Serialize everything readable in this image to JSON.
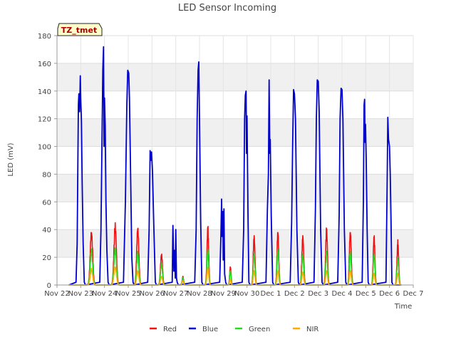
{
  "chart_data": {
    "type": "line",
    "title": "LED Sensor Incoming",
    "xlabel": "Time",
    "ylabel": "LED (mV)",
    "annotation": "TZ_tmet",
    "ylim": [
      0,
      180
    ],
    "yticks": [
      0,
      20,
      40,
      60,
      80,
      100,
      120,
      140,
      160,
      180
    ],
    "xlim": [
      0,
      15
    ],
    "xticks": [
      "Nov 22",
      "Nov 23",
      "Nov 24",
      "Nov 25",
      "Nov 26",
      "Nov 27",
      "Nov 28",
      "Nov 29",
      "Nov 30",
      "Dec 1",
      "Dec 2",
      "Dec 3",
      "Dec 4",
      "Dec 5",
      "Dec 6",
      "Dec 7"
    ],
    "grid": true,
    "legend_position": "bottom",
    "series": [
      {
        "name": "Red",
        "color": "#ee1111"
      },
      {
        "name": "Blue",
        "color": "#0000cc"
      },
      {
        "name": "Green",
        "color": "#22dd22"
      },
      {
        "name": "NIR",
        "color": "#ffaa00"
      }
    ],
    "days": [
      {
        "center": 1.45,
        "width": 0.17,
        "Blue": [
          [
            0.8,
            2
          ],
          [
            0.85,
            30
          ],
          [
            0.9,
            130
          ],
          [
            0.92,
            138
          ],
          [
            0.95,
            125
          ],
          [
            0.98,
            151
          ],
          [
            1.0,
            135
          ],
          [
            1.03,
            118
          ],
          [
            1.06,
            75
          ],
          [
            1.1,
            30
          ],
          [
            1.15,
            2
          ]
        ],
        "Red": 38,
        "Green": 24,
        "NIR": 11
      },
      {
        "center": 2.45,
        "width": 0.17,
        "Blue": [
          [
            1.8,
            2
          ],
          [
            1.85,
            40
          ],
          [
            1.9,
            110
          ],
          [
            1.93,
            155
          ],
          [
            1.96,
            172
          ],
          [
            1.98,
            100
          ],
          [
            2.0,
            135
          ],
          [
            2.03,
            115
          ],
          [
            2.06,
            60
          ],
          [
            2.1,
            25
          ],
          [
            2.15,
            2
          ]
        ],
        "Red": 42,
        "Green": 26,
        "NIR": 13
      },
      {
        "center": 3.4,
        "width": 0.15,
        "Blue": [
          [
            2.8,
            2
          ],
          [
            2.88,
            60
          ],
          [
            2.94,
            130
          ],
          [
            2.98,
            155
          ],
          [
            3.02,
            153
          ],
          [
            3.05,
            135
          ],
          [
            3.1,
            80
          ],
          [
            3.15,
            20
          ],
          [
            3.2,
            2
          ]
        ],
        "Red": 41,
        "Green": 23,
        "NIR": 10
      },
      {
        "center": 4.4,
        "width": 0.14,
        "Blue": [
          [
            3.82,
            2
          ],
          [
            3.88,
            40
          ],
          [
            3.92,
            97
          ],
          [
            3.95,
            90
          ],
          [
            3.98,
            96
          ],
          [
            4.02,
            82
          ],
          [
            4.08,
            40
          ],
          [
            4.14,
            2
          ]
        ],
        "Red": 22,
        "Green": 15,
        "NIR": 6
      },
      {
        "center": 5.3,
        "width": 0.1,
        "Blue": [
          [
            4.85,
            2
          ],
          [
            4.88,
            43
          ],
          [
            4.92,
            10
          ],
          [
            4.95,
            25
          ],
          [
            4.98,
            5
          ],
          [
            5.0,
            40
          ],
          [
            5.03,
            5
          ],
          [
            5.06,
            2
          ]
        ],
        "Red": 6,
        "Green": 5,
        "NIR": 3
      },
      {
        "center": 6.35,
        "width": 0.12,
        "Blue": [
          [
            5.8,
            2
          ],
          [
            5.86,
            40
          ],
          [
            5.9,
            120
          ],
          [
            5.94,
            155
          ],
          [
            5.97,
            161
          ],
          [
            6.0,
            120
          ],
          [
            6.05,
            45
          ],
          [
            6.1,
            2
          ]
        ],
        "Red": 40,
        "Green": 25,
        "NIR": 12
      },
      {
        "center": 7.3,
        "width": 0.1,
        "Blue": [
          [
            6.85,
            2
          ],
          [
            6.9,
            35
          ],
          [
            6.93,
            62
          ],
          [
            6.95,
            35
          ],
          [
            6.98,
            53
          ],
          [
            7.0,
            18
          ],
          [
            7.03,
            55
          ],
          [
            7.06,
            8
          ],
          [
            7.1,
            2
          ]
        ],
        "Red": 13,
        "Green": 10,
        "NIR": 4
      },
      {
        "center": 8.3,
        "width": 0.12,
        "Blue": [
          [
            7.8,
            2
          ],
          [
            7.86,
            40
          ],
          [
            7.9,
            120
          ],
          [
            7.93,
            137
          ],
          [
            7.96,
            140
          ],
          [
            7.98,
            95
          ],
          [
            8.0,
            122
          ],
          [
            8.04,
            55
          ],
          [
            8.08,
            2
          ]
        ],
        "Red": 35,
        "Green": 22,
        "NIR": 10
      },
      {
        "center": 9.3,
        "width": 0.12,
        "Blue": [
          [
            8.8,
            2
          ],
          [
            8.86,
            55
          ],
          [
            8.9,
            80
          ],
          [
            8.93,
            148
          ],
          [
            8.96,
            95
          ],
          [
            8.98,
            105
          ],
          [
            9.02,
            50
          ],
          [
            9.08,
            2
          ]
        ],
        "Red": 38,
        "Green": 25,
        "NIR": 10
      },
      {
        "center": 10.35,
        "width": 0.13,
        "Blue": [
          [
            9.82,
            2
          ],
          [
            9.88,
            45
          ],
          [
            9.92,
            100
          ],
          [
            9.96,
            141
          ],
          [
            10.0,
            138
          ],
          [
            10.04,
            120
          ],
          [
            10.1,
            40
          ],
          [
            10.16,
            2
          ]
        ],
        "Red": 35,
        "Green": 22,
        "NIR": 9
      },
      {
        "center": 11.35,
        "width": 0.13,
        "Blue": [
          [
            10.82,
            2
          ],
          [
            10.88,
            55
          ],
          [
            10.92,
            120
          ],
          [
            10.96,
            148
          ],
          [
            11.0,
            147
          ],
          [
            11.04,
            125
          ],
          [
            11.1,
            40
          ],
          [
            11.16,
            2
          ]
        ],
        "Red": 39,
        "Green": 23,
        "NIR": 10
      },
      {
        "center": 12.35,
        "width": 0.13,
        "Blue": [
          [
            11.82,
            2
          ],
          [
            11.88,
            50
          ],
          [
            11.92,
            120
          ],
          [
            11.96,
            142
          ],
          [
            12.0,
            141
          ],
          [
            12.04,
            120
          ],
          [
            12.1,
            40
          ],
          [
            12.16,
            2
          ]
        ],
        "Red": 38,
        "Green": 23,
        "NIR": 10
      },
      {
        "center": 13.35,
        "width": 0.12,
        "Blue": [
          [
            12.85,
            2
          ],
          [
            12.9,
            60
          ],
          [
            12.93,
            130
          ],
          [
            12.95,
            134
          ],
          [
            12.97,
            103
          ],
          [
            12.99,
            116
          ],
          [
            13.02,
            90
          ],
          [
            13.06,
            40
          ],
          [
            13.1,
            2
          ]
        ],
        "Red": 34,
        "Green": 22,
        "NIR": 8
      },
      {
        "center": 14.35,
        "width": 0.12,
        "Blue": [
          [
            13.85,
            2
          ],
          [
            13.9,
            70
          ],
          [
            13.93,
            121
          ],
          [
            13.96,
            105
          ],
          [
            14.0,
            100
          ],
          [
            14.03,
            80
          ],
          [
            14.06,
            50
          ],
          [
            14.1,
            2
          ]
        ],
        "Red": 30,
        "Green": 19,
        "NIR": 8
      }
    ]
  }
}
